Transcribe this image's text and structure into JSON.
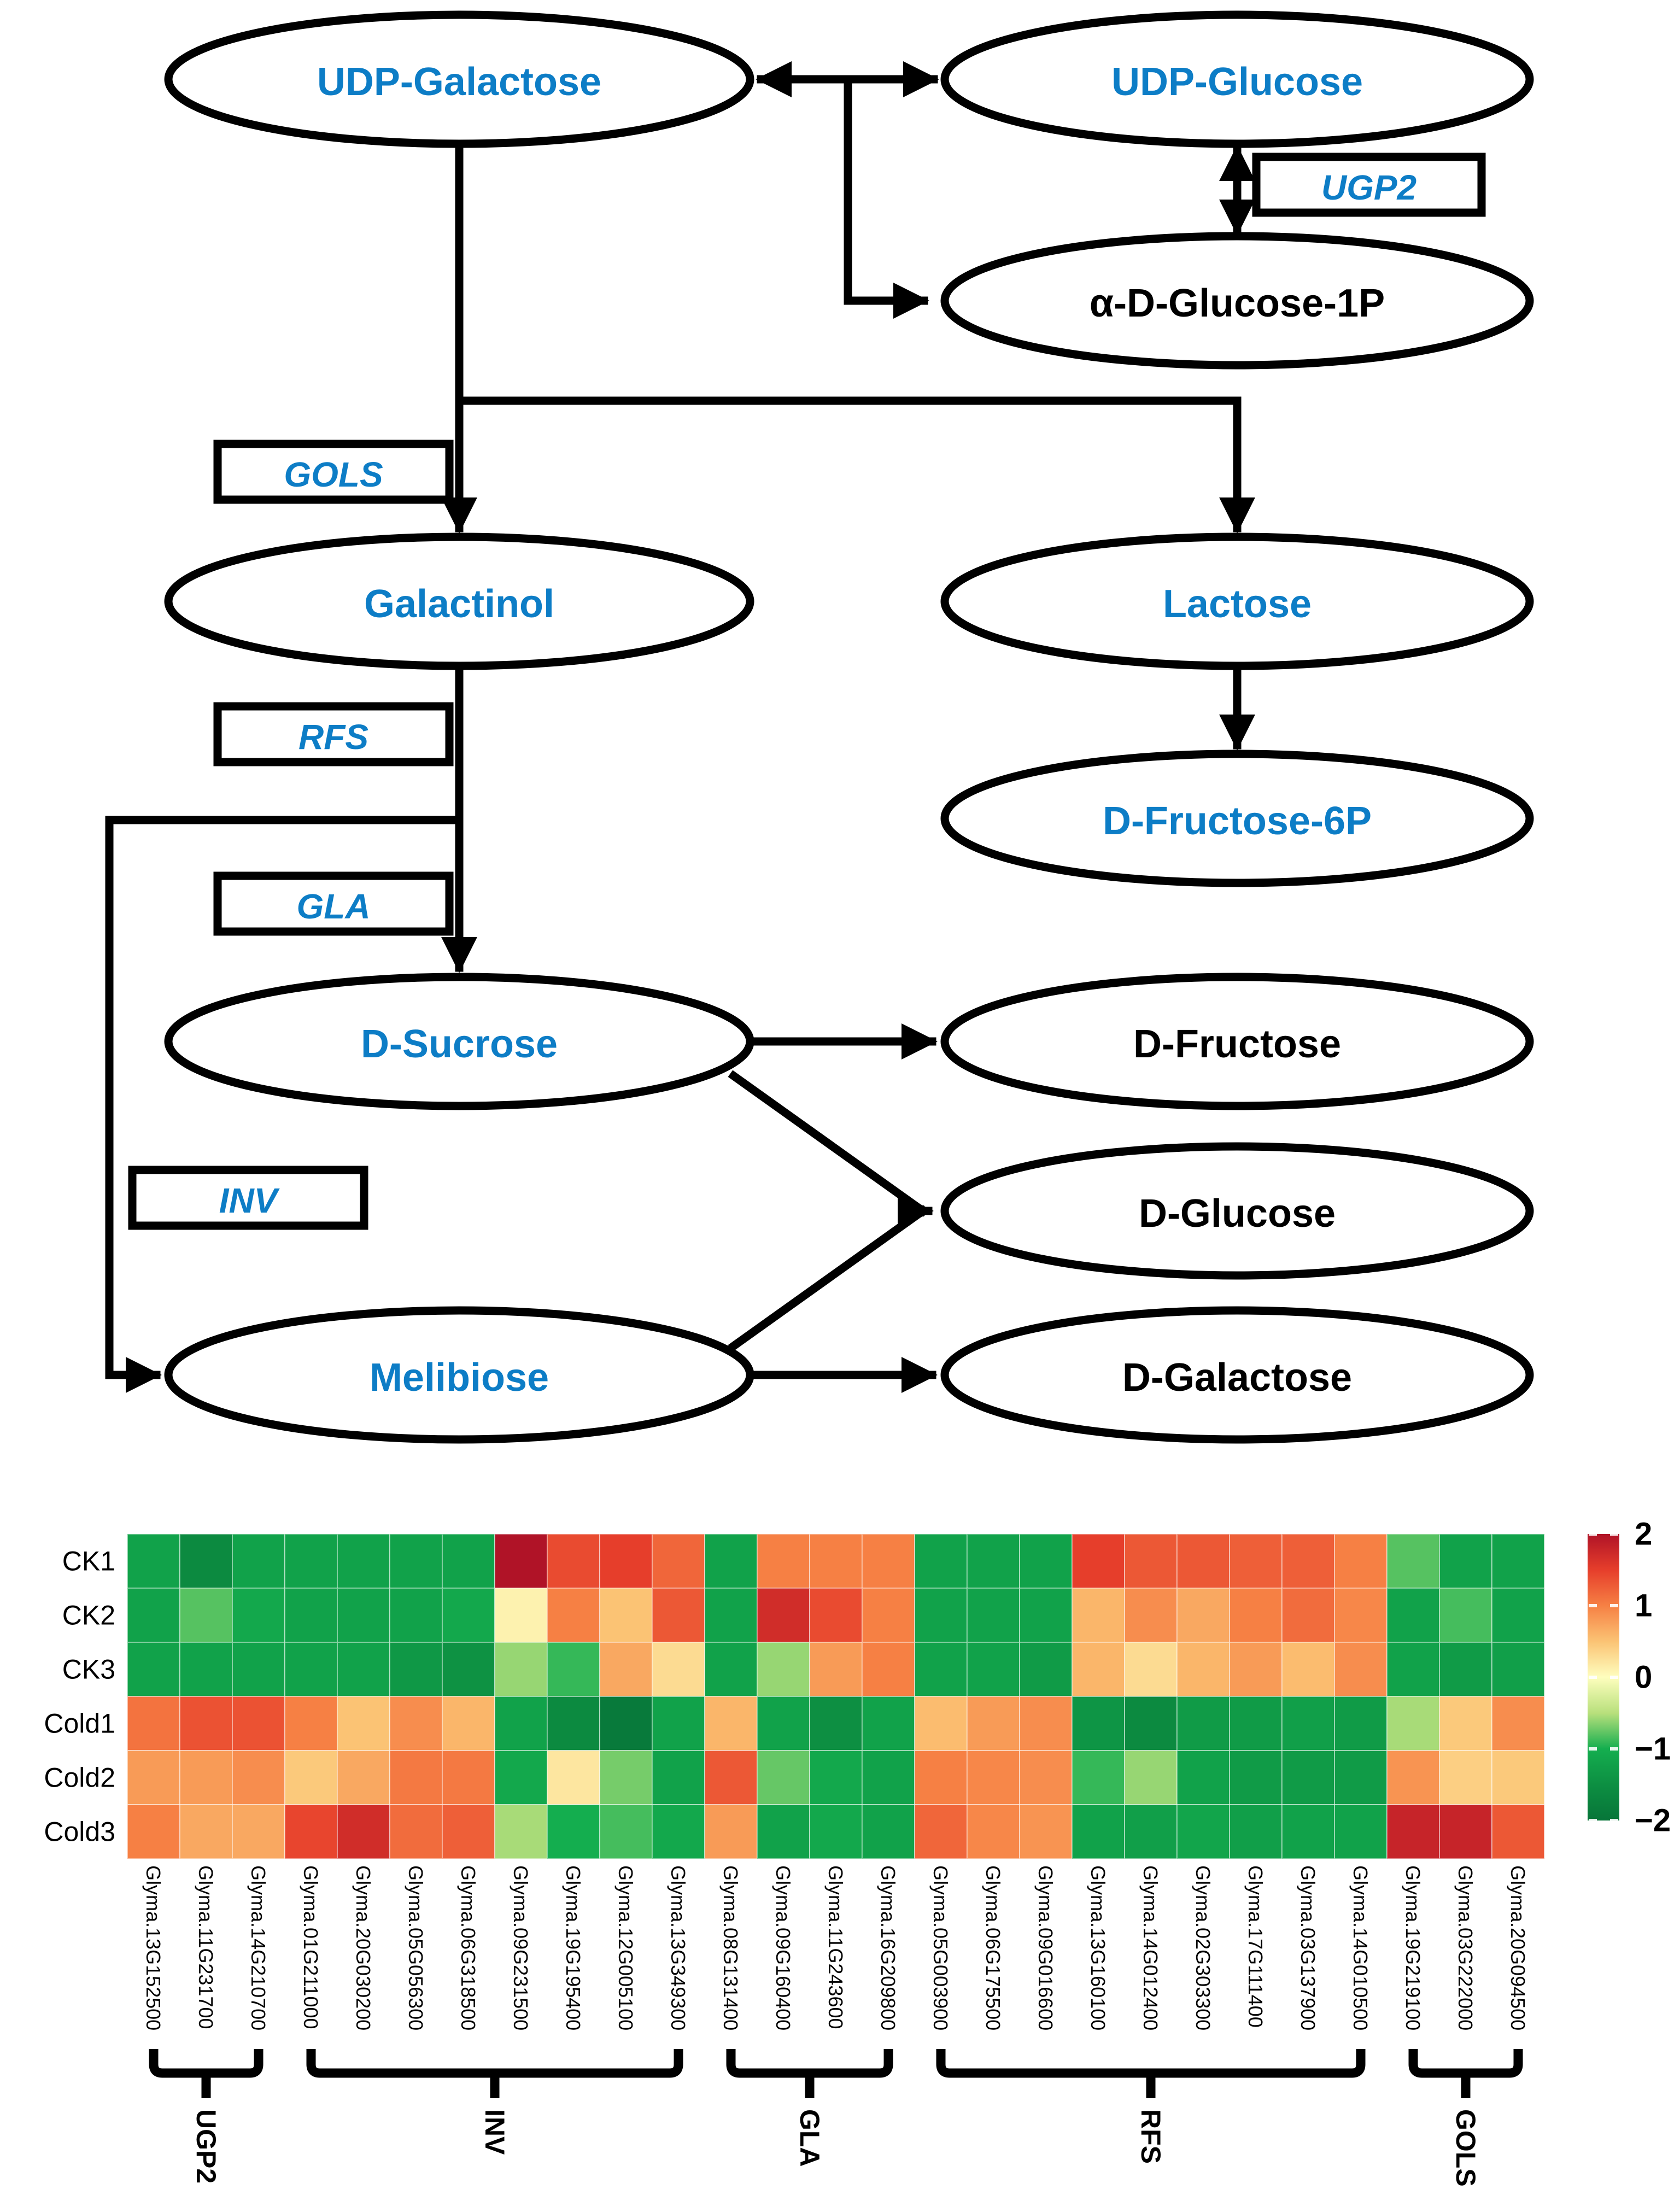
{
  "pathway": {
    "accent_blue": "#0d7dc6",
    "nodes": {
      "udp_galactose": {
        "label": "UDP-Galactose",
        "color": "#0d7dc6"
      },
      "udp_glucose": {
        "label": "UDP-Glucose",
        "color": "#0d7dc6"
      },
      "a_d_glucose_1p": {
        "label": "α-D-Glucose-1P",
        "color": "#000000"
      },
      "galactinol": {
        "label": "Galactinol",
        "color": "#0d7dc6"
      },
      "lactose": {
        "label": "Lactose",
        "color": "#0d7dc6"
      },
      "d_fructose_6p": {
        "label": "D-Fructose-6P",
        "color": "#0d7dc6"
      },
      "d_sucrose": {
        "label": "D-Sucrose",
        "color": "#0d7dc6"
      },
      "d_fructose": {
        "label": "D-Fructose",
        "color": "#000000"
      },
      "d_glucose": {
        "label": "D-Glucose",
        "color": "#000000"
      },
      "melibiose": {
        "label": "Melibiose",
        "color": "#0d7dc6"
      },
      "d_galactose": {
        "label": "D-Galactose",
        "color": "#000000"
      }
    },
    "enzymes": {
      "ugp2": {
        "label": "UGP2"
      },
      "gols": {
        "label": "GOLS"
      },
      "rfs": {
        "label": "RFS"
      },
      "gla": {
        "label": "GLA"
      },
      "inv": {
        "label": "INV"
      }
    }
  },
  "chart_data": {
    "type": "heatmap",
    "rows": [
      "CK1",
      "CK2",
      "CK3",
      "Cold1",
      "Cold2",
      "Cold3"
    ],
    "columns": [
      "Glyma.13G152500",
      "Glyma.11G231700",
      "Glyma.14G210700",
      "Glyma.01G211000",
      "Glyma.20G030200",
      "Glyma.05G056300",
      "Glyma.06G318500",
      "Glyma.09G231500",
      "Glyma.19G195400",
      "Glyma.12G005100",
      "Glyma.13G349300",
      "Glyma.08G131400",
      "Glyma.09G160400",
      "Glyma.11G243600",
      "Glyma.16G209800",
      "Glyma.05G003900",
      "Glyma.06G175500",
      "Glyma.09G016600",
      "Glyma.13G160100",
      "Glyma.14G012400",
      "Glyma.02G303300",
      "Glyma.17G111400",
      "Glyma.03G137900",
      "Glyma.14G010500",
      "Glyma.19G219100",
      "Glyma.03G222000",
      "Glyma.20G094500"
    ],
    "gene_groups": [
      {
        "label": "UGP2",
        "start": 1,
        "end": 3
      },
      {
        "label": "INV",
        "start": 4,
        "end": 11
      },
      {
        "label": "GLA",
        "start": 12,
        "end": 15
      },
      {
        "label": "RFS",
        "start": 16,
        "end": 24
      },
      {
        "label": "GOLS",
        "start": 25,
        "end": 27
      }
    ],
    "values": [
      [
        -1.2,
        -1.6,
        -1.2,
        -1.2,
        -1.2,
        -1.2,
        -1.2,
        2.0,
        1.4,
        1.5,
        1.2,
        -1.2,
        1.0,
        1.0,
        1.0,
        -1.2,
        -1.2,
        -1.2,
        1.5,
        1.3,
        1.3,
        1.25,
        1.25,
        1.0,
        -0.8,
        -1.2,
        -1.2
      ],
      [
        -1.2,
        -0.8,
        -1.1,
        -1.2,
        -1.2,
        -1.2,
        -1.1,
        0.1,
        1.0,
        0.5,
        1.3,
        -1.2,
        1.7,
        1.4,
        1.0,
        -1.2,
        -1.2,
        -1.2,
        0.6,
        0.9,
        0.7,
        1.0,
        1.15,
        0.95,
        -1.2,
        -0.85,
        -1.2
      ],
      [
        -1.2,
        -1.2,
        -1.2,
        -1.2,
        -1.2,
        -1.35,
        -1.45,
        -0.6,
        -0.9,
        0.7,
        0.3,
        -1.2,
        -0.6,
        0.8,
        1.0,
        -1.2,
        -1.2,
        -1.3,
        0.6,
        0.3,
        0.6,
        0.8,
        0.55,
        0.9,
        -1.2,
        -1.3,
        -1.25
      ],
      [
        1.1,
        1.35,
        1.35,
        1.0,
        0.5,
        0.9,
        0.6,
        -1.2,
        -1.6,
        -1.9,
        -1.2,
        0.6,
        -1.2,
        -1.5,
        -1.2,
        0.55,
        0.8,
        0.9,
        -1.4,
        -1.6,
        -1.3,
        -1.3,
        -1.25,
        -1.3,
        -0.55,
        0.45,
        0.9
      ],
      [
        0.8,
        0.8,
        0.9,
        0.45,
        0.7,
        1.05,
        1.05,
        -1.1,
        0.2,
        -0.7,
        -1.2,
        1.3,
        -0.75,
        -1.1,
        -1.2,
        1.0,
        0.95,
        0.9,
        -0.9,
        -0.6,
        -1.2,
        -1.3,
        -1.3,
        -1.3,
        0.85,
        0.4,
        0.45
      ],
      [
        1.0,
        0.7,
        0.7,
        1.45,
        1.7,
        1.15,
        1.25,
        -0.55,
        -1.0,
        -0.85,
        -1.1,
        0.8,
        -1.2,
        -1.1,
        -1.2,
        1.2,
        0.95,
        0.85,
        -1.2,
        -1.25,
        -1.15,
        -1.25,
        -1.2,
        -1.2,
        1.8,
        1.8,
        1.3
      ]
    ],
    "value_range": [
      -2,
      2
    ],
    "colorbar_ticks": [
      {
        "label": "2",
        "value": 2
      },
      {
        "label": "1",
        "value": 1
      },
      {
        "label": "0",
        "value": 0
      },
      {
        "label": "−1",
        "value": -1
      },
      {
        "label": "−2",
        "value": -2
      }
    ],
    "colormap_stops": [
      {
        "value": 2.0,
        "color": "#b01327"
      },
      {
        "value": 1.5,
        "color": "#e63e2b"
      },
      {
        "value": 1.0,
        "color": "#f68044"
      },
      {
        "value": 0.5,
        "color": "#fbc374"
      },
      {
        "value": 0.0,
        "color": "#fefebe"
      },
      {
        "value": -0.5,
        "color": "#b8e07c"
      },
      {
        "value": -1.0,
        "color": "#14ae4f"
      },
      {
        "value": -1.5,
        "color": "#0d8f42"
      },
      {
        "value": -2.0,
        "color": "#077539"
      }
    ],
    "legend_position": "right",
    "grid": true
  }
}
